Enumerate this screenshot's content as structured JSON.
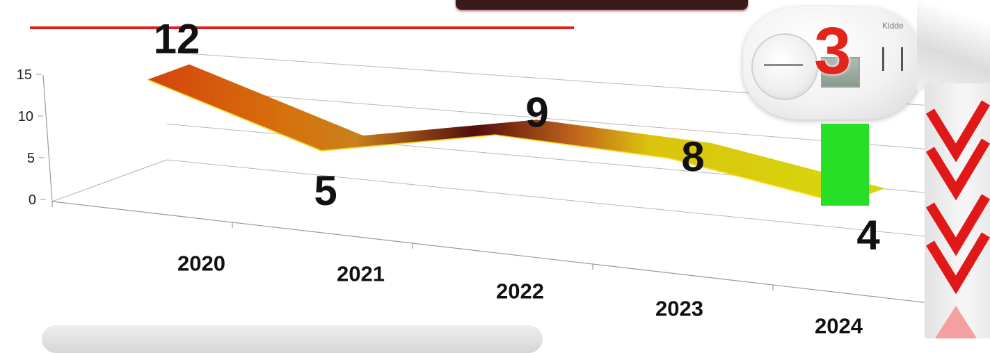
{
  "chart_data": {
    "type": "line",
    "categories": [
      "2020",
      "2021",
      "2022",
      "2023",
      "2024"
    ],
    "values": [
      12,
      5,
      9,
      8,
      4
    ],
    "data_labels": [
      "12",
      "5",
      "9",
      "8",
      "4"
    ],
    "y_ticks": [
      "0",
      "5",
      "10",
      "15"
    ],
    "ylim": [
      0,
      15
    ],
    "grid": true,
    "style": "3d-ribbon",
    "title": "",
    "xlabel": "",
    "ylabel": ""
  },
  "detector": {
    "number": "3",
    "brand": "Kidde"
  },
  "colors": {
    "accent_red": "#e0201c",
    "highlight_green": "#27df27",
    "ribbon_start": "#d23a00",
    "ribbon_dark": "#4a0000",
    "ribbon_end": "#d4d400"
  }
}
